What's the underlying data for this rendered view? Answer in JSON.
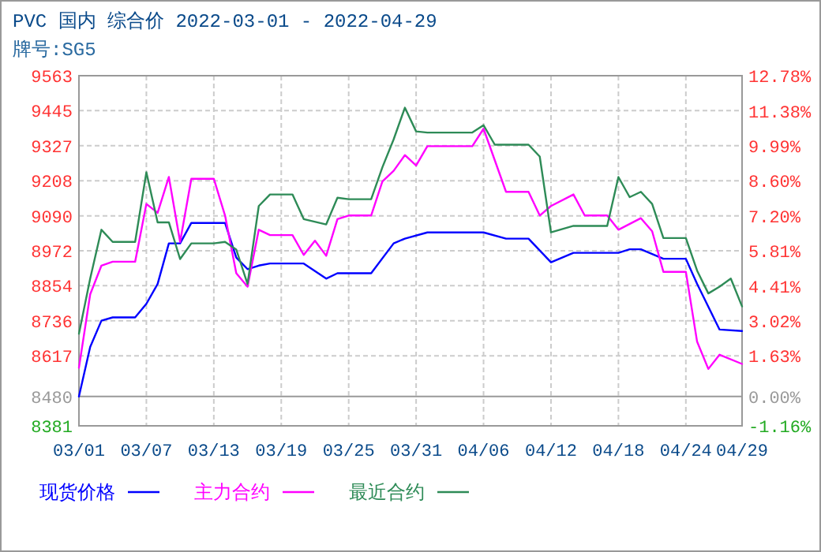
{
  "chart_data": {
    "type": "line",
    "title": "PVC 国内 综合价 2022-03-01 - 2022-04-29",
    "subtitle": "牌号:SG5",
    "xlim": [
      "2022-03-01",
      "2022-04-29"
    ],
    "xticks": [
      {
        "value": "2022-03-01",
        "label": "03/01"
      },
      {
        "value": "2022-03-07",
        "label": "03/07"
      },
      {
        "value": "2022-03-13",
        "label": "03/13"
      },
      {
        "value": "2022-03-19",
        "label": "03/19"
      },
      {
        "value": "2022-03-25",
        "label": "03/25"
      },
      {
        "value": "2022-03-31",
        "label": "03/31"
      },
      {
        "value": "2022-04-06",
        "label": "04/06"
      },
      {
        "value": "2022-04-12",
        "label": "04/12"
      },
      {
        "value": "2022-04-18",
        "label": "04/18"
      },
      {
        "value": "2022-04-24",
        "label": "04/24"
      },
      {
        "value": "2022-04-29",
        "label": "04/29"
      }
    ],
    "ylim": [
      8381,
      9563
    ],
    "yticks": [
      8381,
      8480,
      8617,
      8736,
      8854,
      8972,
      9090,
      9208,
      9327,
      9445,
      9563
    ],
    "y2lim": [
      -1.16,
      12.78
    ],
    "y2ticks": [
      {
        "value": -1.16,
        "label": "-1.16%"
      },
      {
        "value": 0,
        "label": "0.00%"
      },
      {
        "value": 1.63,
        "label": "1.63%"
      },
      {
        "value": 3.02,
        "label": "3.02%"
      },
      {
        "value": 4.41,
        "label": "4.41%"
      },
      {
        "value": 5.81,
        "label": "5.81%"
      },
      {
        "value": 7.2,
        "label": "7.20%"
      },
      {
        "value": 8.6,
        "label": "8.60%"
      },
      {
        "value": 9.99,
        "label": "9.99%"
      },
      {
        "value": 11.38,
        "label": "11.38%"
      },
      {
        "value": 12.78,
        "label": "12.78%"
      }
    ],
    "grid": true,
    "legend": "bottom",
    "line_style": "solid",
    "marker": "none",
    "series": [
      {
        "name": "现货价格",
        "color": "#0000ff",
        "x": [
          "2022-03-01",
          "2022-03-02",
          "2022-03-03",
          "2022-03-04",
          "2022-03-06",
          "2022-03-07",
          "2022-03-08",
          "2022-03-09",
          "2022-03-10",
          "2022-03-11",
          "2022-03-14",
          "2022-03-15",
          "2022-03-16",
          "2022-03-17",
          "2022-03-18",
          "2022-03-21",
          "2022-03-23",
          "2022-03-24",
          "2022-03-27",
          "2022-03-29",
          "2022-03-30",
          "2022-04-01",
          "2022-04-06",
          "2022-04-08",
          "2022-04-10",
          "2022-04-12",
          "2022-04-14",
          "2022-04-18",
          "2022-04-19",
          "2022-04-20",
          "2022-04-22",
          "2022-04-24",
          "2022-04-25",
          "2022-04-27",
          "2022-04-29"
        ],
        "values": [
          8480,
          8647,
          8736,
          8747,
          8747,
          8793,
          8860,
          8997,
          8997,
          9066,
          9066,
          8949,
          8910,
          8922,
          8929,
          8929,
          8878,
          8896,
          8896,
          8997,
          9013,
          9034,
          9034,
          9013,
          9013,
          8933,
          8965,
          8965,
          8977,
          8977,
          8945,
          8945,
          8860,
          8706,
          8701
        ]
      },
      {
        "name": "主力合约",
        "color": "#ff00ff",
        "x": [
          "2022-03-01",
          "2022-03-02",
          "2022-03-03",
          "2022-03-04",
          "2022-03-06",
          "2022-03-07",
          "2022-03-08",
          "2022-03-09",
          "2022-03-10",
          "2022-03-11",
          "2022-03-13",
          "2022-03-14",
          "2022-03-15",
          "2022-03-16",
          "2022-03-17",
          "2022-03-18",
          "2022-03-20",
          "2022-03-21",
          "2022-03-22",
          "2022-03-23",
          "2022-03-24",
          "2022-03-25",
          "2022-03-27",
          "2022-03-28",
          "2022-03-29",
          "2022-03-30",
          "2022-03-31",
          "2022-04-01",
          "2022-04-05",
          "2022-04-06",
          "2022-04-08",
          "2022-04-10",
          "2022-04-11",
          "2022-04-12",
          "2022-04-14",
          "2022-04-15",
          "2022-04-17",
          "2022-04-18",
          "2022-04-20",
          "2022-04-21",
          "2022-04-22",
          "2022-04-24",
          "2022-04-25",
          "2022-04-26",
          "2022-04-27",
          "2022-04-29"
        ],
        "values": [
          8577,
          8825,
          8922,
          8935,
          8935,
          9130,
          9100,
          9221,
          9002,
          9215,
          9215,
          9091,
          8896,
          8851,
          9043,
          9025,
          9025,
          8958,
          9006,
          8955,
          9079,
          9091,
          9091,
          9206,
          9242,
          9295,
          9260,
          9325,
          9325,
          9384,
          9171,
          9171,
          9091,
          9123,
          9162,
          9091,
          9091,
          9043,
          9082,
          9038,
          8901,
          8901,
          8665,
          8573,
          8621,
          8590
        ]
      },
      {
        "name": "最近合约",
        "color": "#2e8b57",
        "x": [
          "2022-03-01",
          "2022-03-02",
          "2022-03-03",
          "2022-03-04",
          "2022-03-06",
          "2022-03-07",
          "2022-03-08",
          "2022-03-09",
          "2022-03-10",
          "2022-03-11",
          "2022-03-13",
          "2022-03-14",
          "2022-03-15",
          "2022-03-16",
          "2022-03-17",
          "2022-03-18",
          "2022-03-20",
          "2022-03-21",
          "2022-03-23",
          "2022-03-24",
          "2022-03-25",
          "2022-03-27",
          "2022-03-28",
          "2022-03-29",
          "2022-03-30",
          "2022-03-31",
          "2022-04-01",
          "2022-04-05",
          "2022-04-06",
          "2022-04-07",
          "2022-04-10",
          "2022-04-11",
          "2022-04-12",
          "2022-04-14",
          "2022-04-17",
          "2022-04-18",
          "2022-04-19",
          "2022-04-20",
          "2022-04-21",
          "2022-04-22",
          "2022-04-24",
          "2022-04-25",
          "2022-04-26",
          "2022-04-27",
          "2022-04-28",
          "2022-04-29"
        ],
        "values": [
          8692,
          8878,
          9043,
          9002,
          9002,
          9237,
          9068,
          9068,
          8944,
          8997,
          8997,
          9002,
          8976,
          8860,
          9123,
          9162,
          9162,
          9079,
          9061,
          9151,
          9146,
          9146,
          9254,
          9348,
          9455,
          9375,
          9371,
          9371,
          9396,
          9330,
          9330,
          9290,
          9034,
          9056,
          9056,
          9221,
          9153,
          9171,
          9130,
          9015,
          9015,
          8905,
          8828,
          8851,
          8878,
          8784
        ]
      }
    ]
  }
}
